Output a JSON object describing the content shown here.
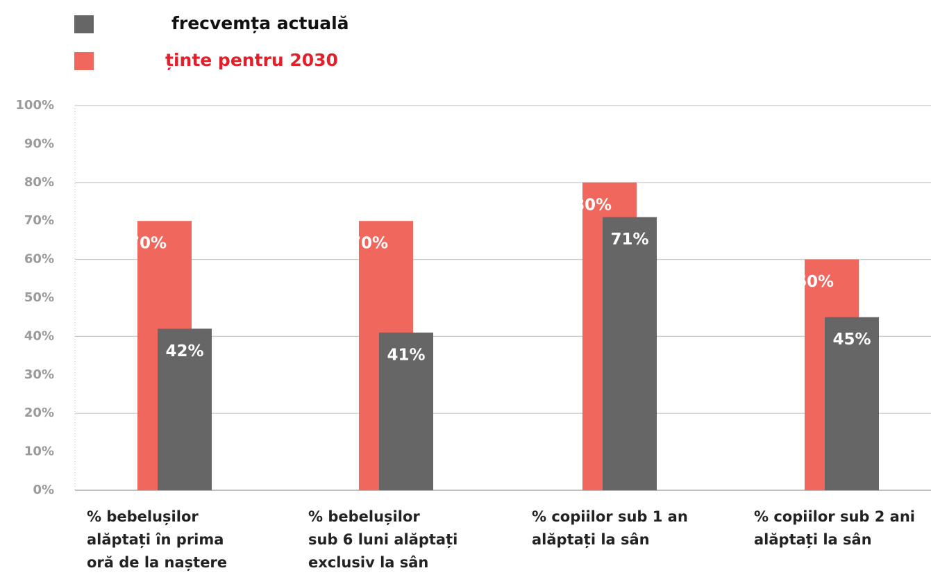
{
  "chart_data": {
    "type": "bar",
    "categories": [
      "% bebelușilor\nalăptați în prima\noră de la naștere",
      "% bebelușilor\nsub 6 luni alăptați\nexclusiv la sân",
      "% copiilor sub 1 an\nalăptați la sân",
      "% copiilor sub 2 ani\nalăptați la sân"
    ],
    "series": [
      {
        "name": "frecvemța actuală",
        "color": "#666666",
        "values": [
          42,
          41,
          71,
          45
        ],
        "value_labels": [
          "42%",
          "41%",
          "71%",
          "45%"
        ]
      },
      {
        "name": "ținte pentru 2030",
        "color": "#f0675d",
        "values": [
          70,
          70,
          80,
          60
        ],
        "value_labels": [
          "70%",
          "70%",
          "80%",
          "60%"
        ]
      }
    ],
    "ylim": [
      0,
      100
    ],
    "yticks": [
      {
        "value": 0,
        "label": "0%"
      },
      {
        "value": 10,
        "label": "10%"
      },
      {
        "value": 20,
        "label": "20%"
      },
      {
        "value": 30,
        "label": "30%"
      },
      {
        "value": 40,
        "label": "40%"
      },
      {
        "value": 50,
        "label": "50%"
      },
      {
        "value": 60,
        "label": "60%"
      },
      {
        "value": 70,
        "label": "70%"
      },
      {
        "value": 80,
        "label": "80%"
      },
      {
        "value": 90,
        "label": "90%"
      },
      {
        "value": 100,
        "label": "100%"
      }
    ],
    "grid": true
  }
}
